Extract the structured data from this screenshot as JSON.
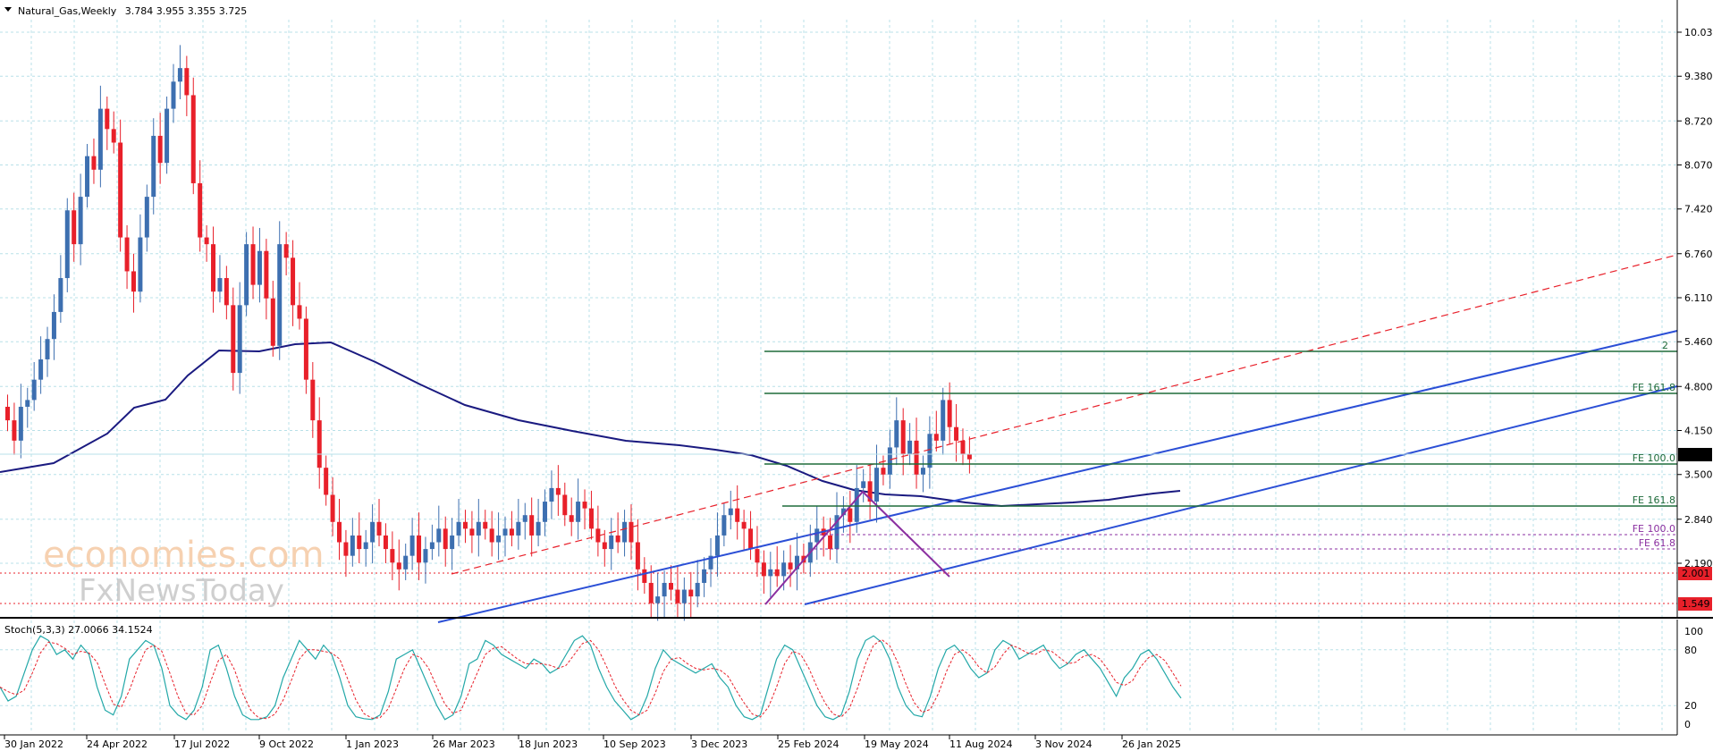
{
  "header": {
    "symbol": "Natural_Gas,Weekly",
    "ohlc": "3.784 3.955 3.355 3.725"
  },
  "price_axis": {
    "labels": [
      "10.030",
      "9.380",
      "8.720",
      "8.070",
      "7.420",
      "6.760",
      "6.110",
      "5.460",
      "4.800",
      "4.150",
      "3.500",
      "2.840",
      "2.190"
    ],
    "current_price": "3.725",
    "support_1": "2.001",
    "support_2": "1.549"
  },
  "time_axis": {
    "labels": [
      "30 Jan 2022",
      "24 Apr 2022",
      "17 Jul 2022",
      "9 Oct 2022",
      "1 Jan 2023",
      "26 Mar 2023",
      "18 Jun 2023",
      "10 Sep 2023",
      "3 Dec 2023",
      "25 Feb 2024",
      "19 May 2024",
      "11 Aug 2024",
      "3 Nov 2024",
      "26 Jan 2025"
    ]
  },
  "fib_labels": {
    "fe_top": "2",
    "fe_161_upper": "FE 161.8",
    "fe_100_upper": "FE 100.0",
    "fe_161_lower": "FE 161.8",
    "fe_100_lower": "FE 100.0",
    "fe_61": "FE 61.8"
  },
  "stoch": {
    "label": "Stoch(5,3,3) 27.0066 34.1524",
    "levels": [
      "100",
      "80",
      "20",
      "0"
    ]
  },
  "watermark": {
    "line1": "economies.com",
    "line2": "FxNewsToday"
  },
  "colors": {
    "bull": "#3d6fb0",
    "bear": "#e8202a",
    "ma": "#1a1a80",
    "channel": "#2b4fd6",
    "fib_green": "#1e6b3a",
    "fib_purple": "#8b2fa0",
    "grid": "#b8e0e8",
    "dashed_red": "#e8202a"
  }
}
